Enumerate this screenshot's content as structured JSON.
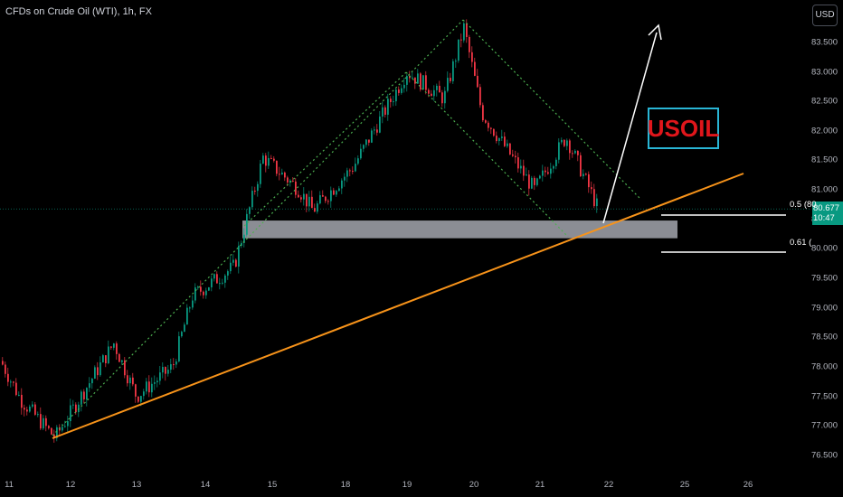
{
  "chart": {
    "title": "CFDs on Crude Oil (WTI), 1h, FX",
    "currency": "USD",
    "current_price": "80.677",
    "countdown": "10:47",
    "annotation_label": "USOIL",
    "fib_labels": [
      "0.5 (80",
      "0.61 ("
    ]
  },
  "colors": {
    "background": "#000000",
    "up_candle": "#089981",
    "down_candle": "#f23645",
    "trendline": "#f7931a",
    "channel": "#4caf50",
    "zone": "#b2b5be",
    "annotation_border": "#29b6d6",
    "annotation_text": "#e0161b"
  },
  "chart_data": {
    "type": "candlestick",
    "symbol": "USOIL",
    "timeframe": "1h",
    "y_ticks": [
      "83.500",
      "83.000",
      "82.500",
      "82.000",
      "81.500",
      "81.000",
      "80.500",
      "80.000",
      "79.500",
      "79.000",
      "78.500",
      "78.000",
      "77.500",
      "77.000",
      "76.500"
    ],
    "x_ticks": [
      "11",
      "12",
      "13",
      "14",
      "15",
      "18",
      "19",
      "20",
      "21",
      "22",
      "25",
      "26"
    ],
    "ylim": [
      76.35,
      83.85
    ],
    "price_path": [
      {
        "day": "11",
        "price": 78.1
      },
      {
        "day": "11",
        "price": 77.45
      },
      {
        "day": "12",
        "price": 76.8
      },
      {
        "day": "12",
        "price": 78.4
      },
      {
        "day": "13",
        "price": 78.0
      },
      {
        "day": "13",
        "price": 77.5
      },
      {
        "day": "14",
        "price": 79.2
      },
      {
        "day": "14",
        "price": 79.7
      },
      {
        "day": "15",
        "price": 81.55
      },
      {
        "day": "15",
        "price": 81.0
      },
      {
        "day": "18",
        "price": 80.65
      },
      {
        "day": "18",
        "price": 81.4
      },
      {
        "day": "19",
        "price": 83.0
      },
      {
        "day": "19",
        "price": 82.55
      },
      {
        "day": "20",
        "price": 83.75
      },
      {
        "day": "20",
        "price": 82.3
      },
      {
        "day": "21",
        "price": 81.0
      },
      {
        "day": "21",
        "price": 81.9
      },
      {
        "day": "22",
        "price": 80.7
      }
    ],
    "support_zone": [
      80.18,
      80.48
    ],
    "fib_levels": [
      {
        "ratio": "0.5",
        "price": 80.52
      },
      {
        "ratio": "0.61",
        "price": 79.93
      }
    ]
  }
}
